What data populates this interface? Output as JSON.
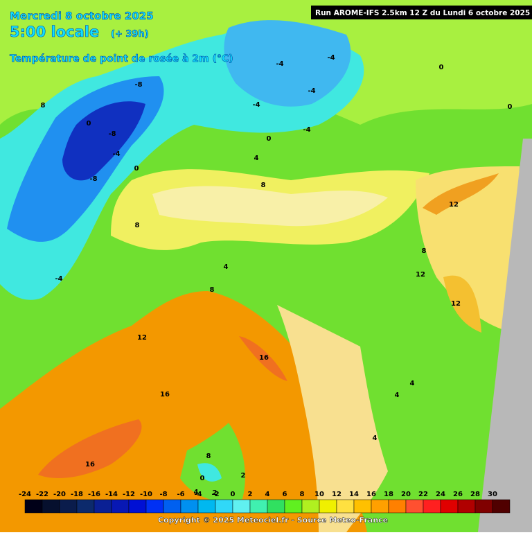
{
  "header": {
    "date": "Mercredi 8 octobre 2025",
    "time": "5:00 locale",
    "lead": "(+ 39h)",
    "field": "Température de point de rosée à 2m (°C)",
    "run": "Run AROME-IFS 2.5km 12 Z du Lundi 6 octobre 2025"
  },
  "contour_labels": [
    8,
    -8,
    0,
    -8,
    -4,
    0,
    -8,
    -4,
    -4,
    0,
    -4,
    -4,
    -4,
    0,
    -4,
    0,
    4,
    8,
    12,
    8,
    4,
    8,
    12,
    12,
    8,
    12,
    16,
    16,
    16,
    4,
    4,
    4,
    8,
    2,
    0,
    4,
    2
  ],
  "colorbar": {
    "ticks": [
      -24,
      -22,
      -20,
      -18,
      -16,
      -14,
      -12,
      -10,
      -8,
      -6,
      -4,
      -2,
      0,
      2,
      4,
      6,
      8,
      10,
      12,
      14,
      16,
      18,
      20,
      22,
      24,
      26,
      28,
      30
    ],
    "colors": [
      "#000018",
      "#06102e",
      "#0a1c4c",
      "#0c2a6c",
      "#0a2094",
      "#0818b4",
      "#0010d4",
      "#0030f4",
      "#0060f0",
      "#0090f0",
      "#00b8f0",
      "#30d8f8",
      "#60f0f0",
      "#40f0b0",
      "#30e060",
      "#60f020",
      "#b0f020",
      "#f0f000",
      "#ffe040",
      "#ffc000",
      "#ffa000",
      "#ff8000",
      "#ff5030",
      "#ff2020",
      "#e00000",
      "#b00000",
      "#800000",
      "#500000"
    ]
  },
  "footer": {
    "copyright": "Copyright © 2025 Meteociel.fr - Source Meteo-France"
  }
}
